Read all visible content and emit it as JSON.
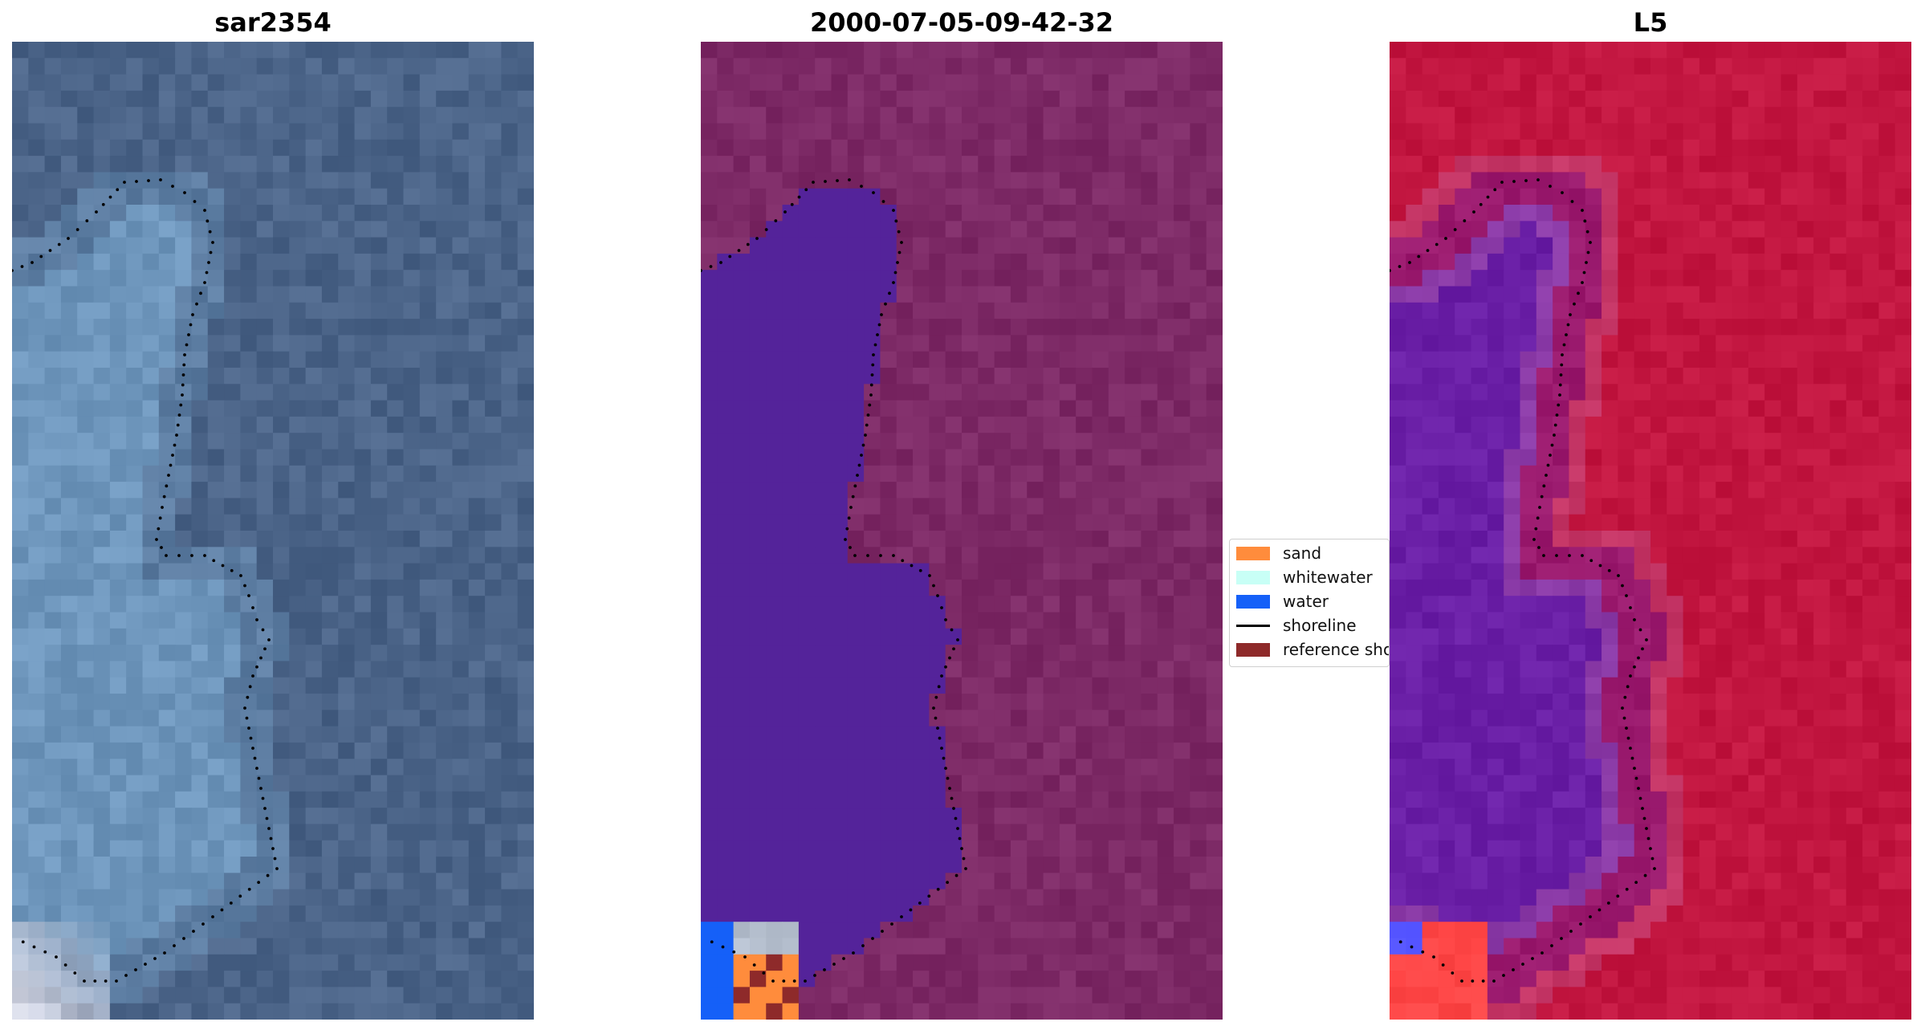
{
  "panels": [
    {
      "id": "rgb",
      "title": "sar2354"
    },
    {
      "id": "classified",
      "title": "2000-07-05-09-42-32"
    },
    {
      "id": "mndwi",
      "title": "L5"
    }
  ],
  "legend": {
    "items": [
      {
        "label": "sand",
        "kind": "patch",
        "color": "#ff8c3c"
      },
      {
        "label": "whitewater",
        "kind": "patch",
        "color": "#c8fff6"
      },
      {
        "label": "water",
        "kind": "patch",
        "color": "#1560f8"
      },
      {
        "label": "shoreline",
        "kind": "line",
        "color": "#000000"
      },
      {
        "label": "reference shoreline",
        "kind": "patch",
        "color": "#8e2a2a"
      }
    ]
  },
  "colors": {
    "water_class": "#54239a",
    "land_class": "#7d2a66",
    "rgb_water": "#6e96bc",
    "rgb_land": "#4b6488",
    "index_water": "#6a1fa6",
    "index_land": "#c21640",
    "shoreline": "#000000"
  }
}
